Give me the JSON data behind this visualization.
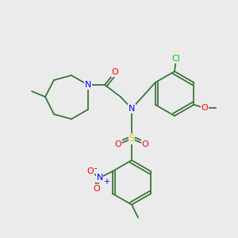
{
  "background_color": "#ebebeb",
  "bond_color": "#2d6e2d",
  "atom_colors": {
    "N": "#0000ff",
    "O": "#ff0000",
    "S": "#cccc00",
    "Cl": "#00cc00",
    "C": "#2d6e2d"
  },
  "font_size": 7.5,
  "bond_width": 1.2
}
